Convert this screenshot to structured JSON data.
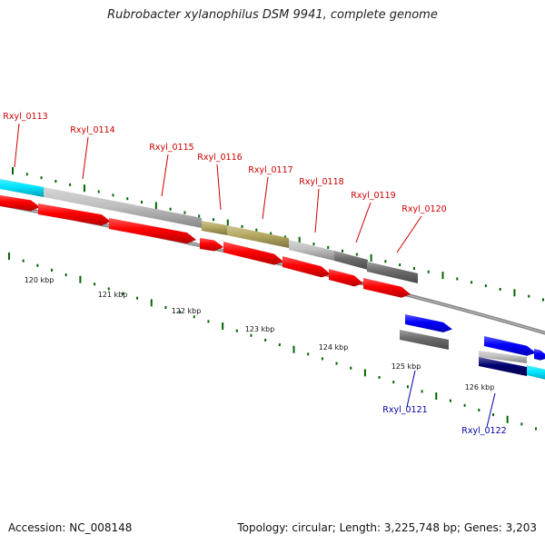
{
  "title": "Rubrobacter xylanophilus DSM 9941, complete genome",
  "footer": {
    "accession": "Accession: NC_008148",
    "summary": "Topology: circular; Length: 3,225,748 bp; Genes: 3,203"
  },
  "colors": {
    "forward_label": "#cc0000",
    "reverse_label": "#0000aa",
    "forward_gene": "#ff0000",
    "reverse_gene": "#0000ff",
    "tick": "#006600",
    "backbone": "#777777",
    "cyan_feature": "#00e5ff",
    "light_gray_feature": "#c0c0c0",
    "olive_feature": "#b5a760",
    "dark_gray_feature": "#6a6a6a",
    "navy_feature": "#000070"
  },
  "scale_labels": [
    "120 kbp",
    "121 kbp",
    "122 kbp",
    "123 kbp",
    "124 kbp",
    "125 kbp",
    "126 kbp"
  ],
  "gene_labels_forward": [
    "Rxyl_0113",
    "Rxyl_0114",
    "Rxyl_0115",
    "Rxyl_0116",
    "Rxyl_0117",
    "Rxyl_0118",
    "Rxyl_0119",
    "Rxyl_0120"
  ],
  "gene_labels_reverse": [
    "Rxyl_0121",
    "Rxyl_0122"
  ]
}
